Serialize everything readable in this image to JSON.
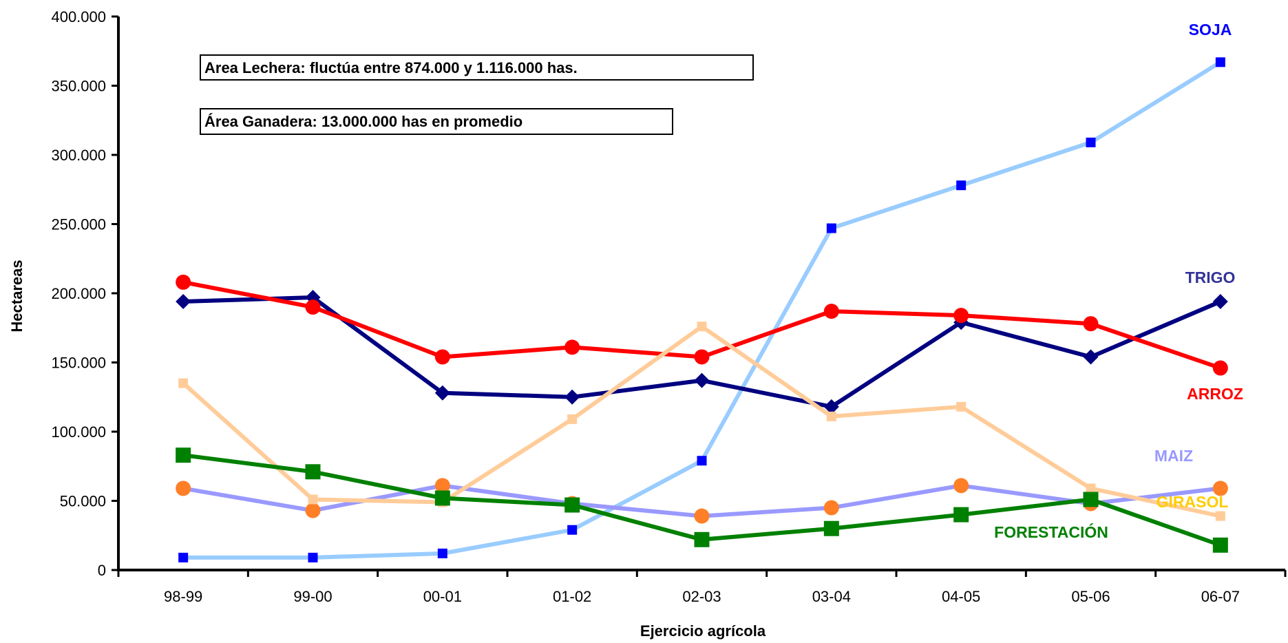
{
  "chart_data": {
    "type": "line",
    "title": "",
    "xlabel": "Ejercicio agrícola",
    "ylabel": "Hectareas",
    "ylim": [
      0,
      400000
    ],
    "y_ticks": [
      0,
      50000,
      100000,
      150000,
      200000,
      250000,
      300000,
      350000,
      400000
    ],
    "y_tick_labels": [
      "0",
      "50.000",
      "100.000",
      "150.000",
      "200.000",
      "250.000",
      "300.000",
      "350.000",
      "400.000"
    ],
    "categories": [
      "98-99",
      "99-00",
      "00-01",
      "01-02",
      "02-03",
      "03-04",
      "04-05",
      "05-06",
      "06-07"
    ],
    "grid": false,
    "legend": "direct labels at line ends",
    "annotations": [
      "Area Lechera: fluctúa entre 874.000 y 1.116.000 has.",
      "Área Ganadera: 13.000.000 has en promedio"
    ],
    "series": [
      {
        "name": "SOJA",
        "line_color": "#99ccff",
        "marker": "square-small",
        "marker_color": "#0000ff",
        "label_color": "#0000ff",
        "values": [
          9000,
          9000,
          12000,
          29000,
          79000,
          247000,
          278000,
          309000,
          367000
        ]
      },
      {
        "name": "TRIGO",
        "line_color": "#000080",
        "marker": "diamond",
        "marker_color": "#000080",
        "label_color": "#333399",
        "values": [
          194000,
          197000,
          128000,
          125000,
          137000,
          118000,
          179000,
          154000,
          194000
        ]
      },
      {
        "name": "ARROZ",
        "line_color": "#ff0000",
        "marker": "circle",
        "marker_color": "#ff0000",
        "label_color": "#ff0000",
        "values": [
          208000,
          190000,
          154000,
          161000,
          154000,
          187000,
          184000,
          178000,
          146000
        ]
      },
      {
        "name": "MAIZ",
        "line_color": "#9999ff",
        "marker": "circle",
        "marker_color": "#ff7f27",
        "label_color": "#9999ff",
        "values": [
          59000,
          43000,
          61000,
          48000,
          39000,
          45000,
          61000,
          48000,
          59000
        ]
      },
      {
        "name": "GIRASOL",
        "line_color": "#ffcc99",
        "marker": "square-small",
        "marker_color": "#ffcc99",
        "label_color": "#ffcc00",
        "values": [
          135000,
          51000,
          49000,
          109000,
          176000,
          111000,
          118000,
          59000,
          39000
        ]
      },
      {
        "name": "FORESTACIÓN",
        "line_color": "#008000",
        "marker": "square-large",
        "marker_color": "#008000",
        "label_color": "#008000",
        "values": [
          83000,
          71000,
          52000,
          47000,
          22000,
          30000,
          40000,
          51000,
          18000
        ]
      }
    ]
  }
}
